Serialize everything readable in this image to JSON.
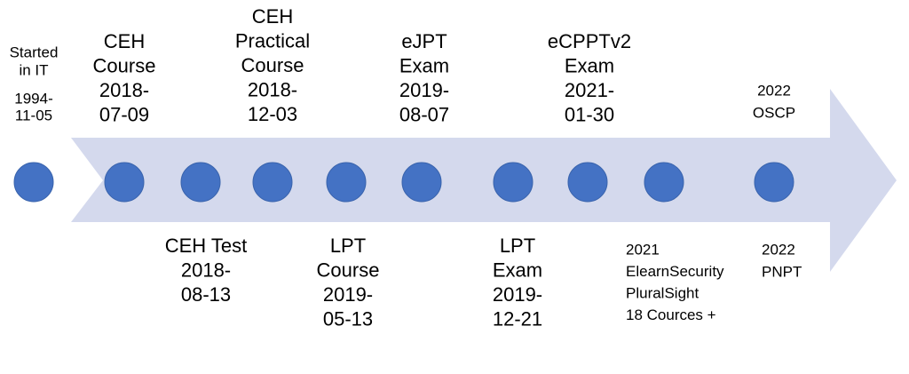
{
  "milestones": [
    {
      "lines": [
        "Started",
        "in IT"
      ],
      "date": [
        "1994-",
        "11-05"
      ]
    },
    {
      "lines": [
        "CEH",
        "Course",
        "2018-",
        "07-09"
      ]
    },
    {
      "lines": [
        "CEH Test",
        "2018-",
        "08-13"
      ]
    },
    {
      "lines": [
        "CEH",
        "Practical",
        "Course",
        "2018-",
        "12-03"
      ]
    },
    {
      "lines": [
        "LPT",
        "Course",
        "2019-",
        "05-13"
      ]
    },
    {
      "lines": [
        "eJPT",
        "Exam",
        "2019-",
        "08-07"
      ]
    },
    {
      "lines": [
        "LPT",
        "Exam",
        "2019-",
        "12-21"
      ]
    },
    {
      "lines": [
        "eCPPTv2",
        "Exam",
        "2021-",
        "01-30"
      ]
    },
    {
      "lines": [
        "2021",
        "ElearnSecurity",
        "PluralSight",
        "18 Cources +"
      ]
    },
    {
      "lines": [
        "2022",
        "OSCP"
      ]
    },
    {
      "lines": [
        "2022",
        "PNPT"
      ]
    }
  ]
}
